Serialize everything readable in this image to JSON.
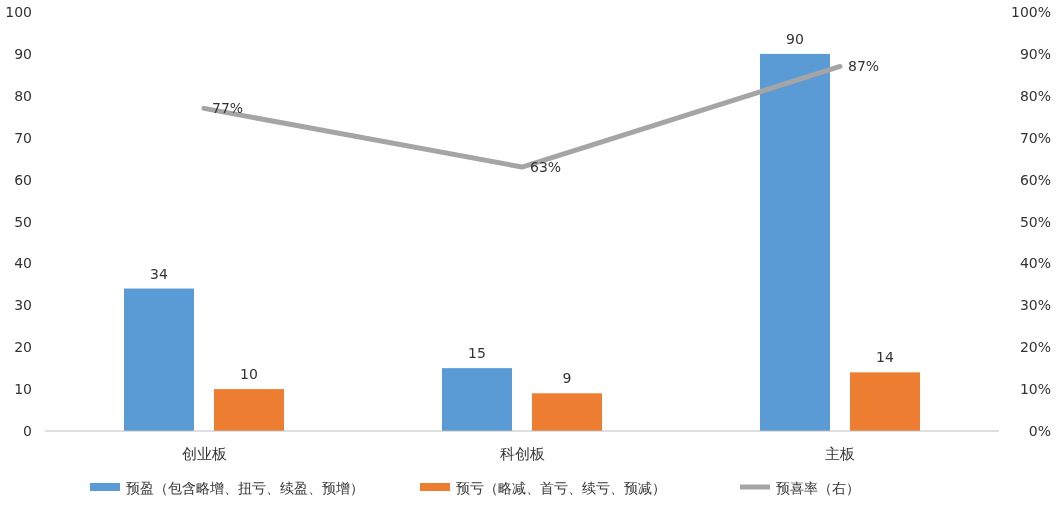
{
  "chart_data": {
    "type": "bar",
    "categories": [
      "创业板",
      "科创板",
      "主板"
    ],
    "series": [
      {
        "name": "预盈（包含略增、扭亏、续盈、预增）",
        "color": "#5b9bd5",
        "values": [
          34,
          15,
          90
        ],
        "value_labels": [
          "34",
          "15",
          "90"
        ]
      },
      {
        "name": "预亏（略减、首亏、续亏、预减）",
        "color": "#ed7d31",
        "values": [
          10,
          9,
          14
        ],
        "value_labels": [
          "10",
          "9",
          "14"
        ]
      },
      {
        "name": "预喜率（右）",
        "type": "line",
        "axis": "y2",
        "color": "#a5a5a5",
        "values": [
          77,
          63,
          87
        ],
        "value_labels": [
          "77%",
          "63%",
          "87%"
        ]
      }
    ],
    "ylim": [
      0,
      100
    ],
    "yticks": [
      0,
      10,
      20,
      30,
      40,
      50,
      60,
      70,
      80,
      90,
      100
    ],
    "y2lim": [
      0,
      100
    ],
    "y2ticks": [
      {
        "value": 0,
        "label": "0%"
      },
      {
        "value": 10,
        "label": "10%"
      },
      {
        "value": 20,
        "label": "20%"
      },
      {
        "value": 30,
        "label": "30%"
      },
      {
        "value": 40,
        "label": "40%"
      },
      {
        "value": 50,
        "label": "50%"
      },
      {
        "value": 60,
        "label": "60%"
      },
      {
        "value": 70,
        "label": "70%"
      },
      {
        "value": 80,
        "label": "80%"
      },
      {
        "value": 90,
        "label": "90%"
      },
      {
        "value": 100,
        "label": "100%"
      }
    ],
    "legend": "bottom",
    "grid": false,
    "marker": "none",
    "line_style": "solid"
  }
}
